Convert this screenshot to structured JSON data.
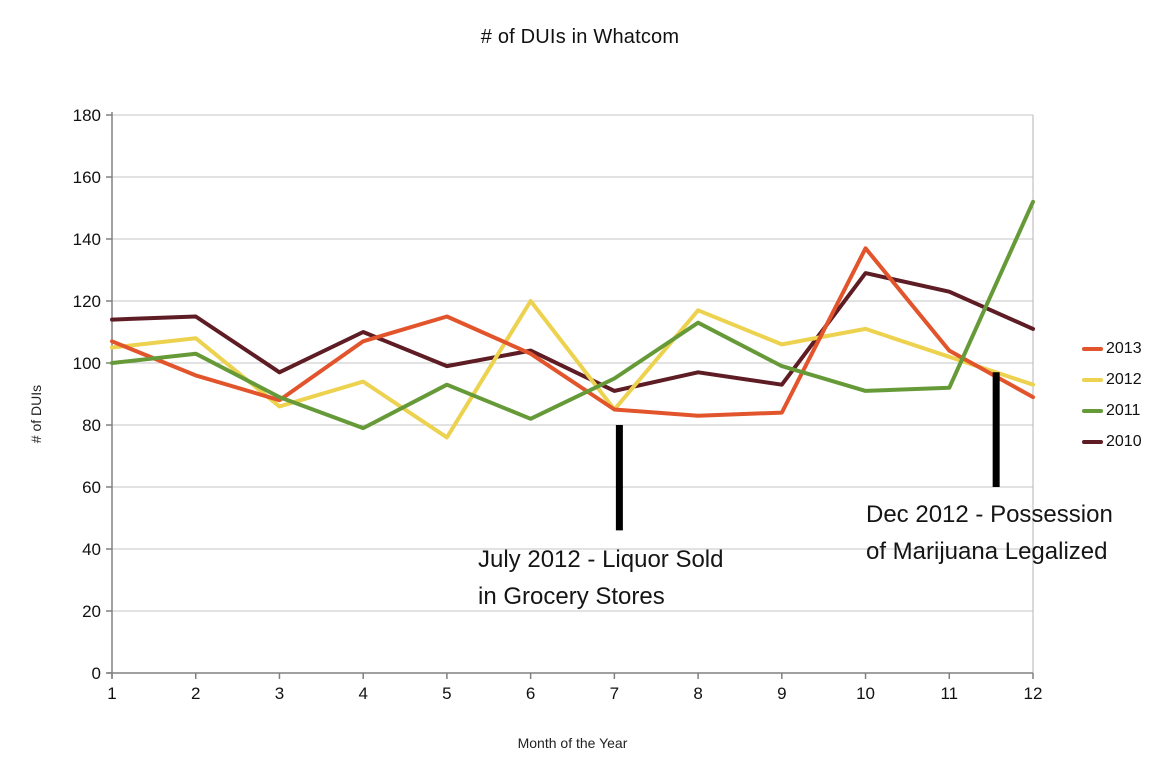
{
  "chart_data": {
    "type": "line",
    "title": "# of DUIs in Whatcom",
    "xlabel": "Month of the Year",
    "ylabel": "# of DUIs",
    "categories": [
      1,
      2,
      3,
      4,
      5,
      6,
      7,
      8,
      9,
      10,
      11,
      12
    ],
    "ylim": [
      0,
      180
    ],
    "ytick_step": 20,
    "grid": true,
    "legend_position": "right",
    "series": [
      {
        "name": "2013",
        "color": "#E2542B",
        "values": [
          107,
          96,
          88,
          107,
          115,
          103,
          85,
          83,
          84,
          137,
          104,
          89
        ]
      },
      {
        "name": "2012",
        "color": "#ECD24E",
        "values": [
          105,
          108,
          86,
          94,
          76,
          120,
          85,
          117,
          106,
          111,
          102,
          93
        ]
      },
      {
        "name": "2011",
        "color": "#669A38",
        "values": [
          100,
          103,
          89,
          79,
          93,
          82,
          95,
          113,
          99,
          91,
          92,
          152
        ]
      },
      {
        "name": "2010",
        "color": "#5E1C24",
        "values": [
          114,
          115,
          97,
          110,
          99,
          104,
          91,
          97,
          93,
          129,
          123,
          111
        ]
      }
    ],
    "annotations": [
      {
        "id": "july",
        "line1": "July 2012 - Liquor Sold",
        "line2": "in Grocery Stores",
        "marker_x": 7.06,
        "marker_y_top": 80,
        "marker_y_bottom": 46,
        "marker_color": "#000000"
      },
      {
        "id": "dec",
        "line1": "Dec 2012 - Possession",
        "line2": "of Marijuana Legalized",
        "marker_x": 11.56,
        "marker_y_top": 97,
        "marker_y_bottom": 60,
        "marker_color": "#000000"
      }
    ],
    "colors": {
      "gridline": "#C6C6C6",
      "axis": "#808080",
      "plot_border": "#B4B4B4",
      "tick_label": "#111111"
    }
  }
}
